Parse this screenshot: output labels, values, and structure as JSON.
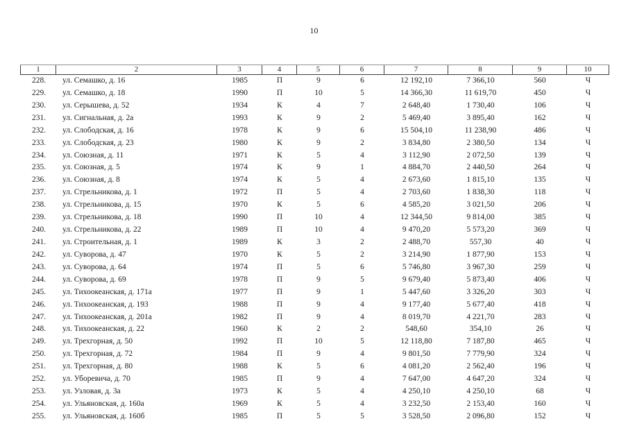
{
  "page": {
    "number": "10"
  },
  "table": {
    "header": [
      "1",
      "2",
      "3",
      "4",
      "5",
      "6",
      "7",
      "8",
      "9",
      "10"
    ],
    "rows": [
      [
        "228.",
        "ул. Семашко, д. 16",
        "1985",
        "П",
        "9",
        "6",
        "12 192,10",
        "7 366,10",
        "560",
        "Ч"
      ],
      [
        "229.",
        "ул. Семашко, д. 18",
        "1990",
        "П",
        "10",
        "5",
        "14 366,30",
        "11 619,70",
        "450",
        "Ч"
      ],
      [
        "230.",
        "ул. Серышева, д. 52",
        "1934",
        "К",
        "4",
        "7",
        "2 648,40",
        "1 730,40",
        "106",
        "Ч"
      ],
      [
        "231.",
        "ул. Сигнальная, д. 2а",
        "1993",
        "К",
        "9",
        "2",
        "5 469,40",
        "3 895,40",
        "162",
        "Ч"
      ],
      [
        "232.",
        "ул. Слободская, д. 16",
        "1978",
        "К",
        "9",
        "6",
        "15 504,10",
        "11 238,90",
        "486",
        "Ч"
      ],
      [
        "233.",
        "ул. Слободская, д. 23",
        "1980",
        "К",
        "9",
        "2",
        "3 834,80",
        "2 380,50",
        "134",
        "Ч"
      ],
      [
        "234.",
        "ул. Союзная, д. 11",
        "1971",
        "К",
        "5",
        "4",
        "3 112,90",
        "2 072,50",
        "139",
        "Ч"
      ],
      [
        "235.",
        "ул. Союзная, д. 5",
        "1974",
        "К",
        "9",
        "1",
        "4 884,70",
        "2 440,50",
        "264",
        "Ч"
      ],
      [
        "236.",
        "ул. Союзная, д. 8",
        "1974",
        "К",
        "5",
        "4",
        "2 673,60",
        "1 815,10",
        "135",
        "Ч"
      ],
      [
        "237.",
        "ул. Стрельникова, д. 1",
        "1972",
        "П",
        "5",
        "4",
        "2 703,60",
        "1 838,30",
        "118",
        "Ч"
      ],
      [
        "238.",
        "ул. Стрельникова, д. 15",
        "1970",
        "К",
        "5",
        "6",
        "4 585,20",
        "3 021,50",
        "206",
        "Ч"
      ],
      [
        "239.",
        "ул. Стрельникова, д. 18",
        "1990",
        "П",
        "10",
        "4",
        "12 344,50",
        "9 814,00",
        "385",
        "Ч"
      ],
      [
        "240.",
        "ул. Стрельникова, д. 22",
        "1989",
        "П",
        "10",
        "4",
        "9 470,20",
        "5 573,20",
        "369",
        "Ч"
      ],
      [
        "241.",
        "ул. Строительная, д. 1",
        "1989",
        "К",
        "3",
        "2",
        "2 488,70",
        "557,30",
        "40",
        "Ч"
      ],
      [
        "242.",
        "ул. Суворова, д. 47",
        "1970",
        "К",
        "5",
        "2",
        "3 214,90",
        "1 877,90",
        "153",
        "Ч"
      ],
      [
        "243.",
        "ул. Суворова, д. 64",
        "1974",
        "П",
        "5",
        "6",
        "5 746,80",
        "3 967,30",
        "259",
        "Ч"
      ],
      [
        "244.",
        "ул. Суворова, д. 69",
        "1978",
        "П",
        "9",
        "5",
        "9 679,40",
        "5 873,40",
        "406",
        "Ч"
      ],
      [
        "245.",
        "ул. Тихоокеанская, д. 171а",
        "1977",
        "П",
        "9",
        "1",
        "5 447,60",
        "3 326,20",
        "303",
        "Ч"
      ],
      [
        "246.",
        "ул. Тихоокеанская, д. 193",
        "1988",
        "П",
        "9",
        "4",
        "9 177,40",
        "5 677,40",
        "418",
        "Ч"
      ],
      [
        "247.",
        "ул. Тихоокеанская, д. 201а",
        "1982",
        "П",
        "9",
        "4",
        "8 019,70",
        "4 221,70",
        "283",
        "Ч"
      ],
      [
        "248.",
        "ул. Тихоокеанская, д. 22",
        "1960",
        "К",
        "2",
        "2",
        "548,60",
        "354,10",
        "26",
        "Ч"
      ],
      [
        "249.",
        "ул. Трехгорная, д. 50",
        "1992",
        "П",
        "10",
        "5",
        "12 118,80",
        "7 187,80",
        "465",
        "Ч"
      ],
      [
        "250.",
        "ул. Трехгорная, д. 72",
        "1984",
        "П",
        "9",
        "4",
        "9 801,50",
        "7 779,90",
        "324",
        "Ч"
      ],
      [
        "251.",
        "ул. Трехгорная, д. 80",
        "1988",
        "К",
        "5",
        "6",
        "4 081,20",
        "2 562,40",
        "196",
        "Ч"
      ],
      [
        "252.",
        "ул. Уборевича, д. 70",
        "1985",
        "П",
        "9",
        "4",
        "7 647,00",
        "4 647,20",
        "324",
        "Ч"
      ],
      [
        "253.",
        "ул. Узловая, д. 3а",
        "1973",
        "К",
        "5",
        "4",
        "4 250,10",
        "4 250,10",
        "68",
        "Ч"
      ],
      [
        "254.",
        "ул. Ульяновская, д. 160а",
        "1969",
        "К",
        "5",
        "4",
        "3 232,50",
        "2 153,40",
        "160",
        "Ч"
      ],
      [
        "255.",
        "ул. Ульяновская, д. 160б",
        "1985",
        "П",
        "5",
        "5",
        "3 528,50",
        "2 096,80",
        "152",
        "Ч"
      ]
    ]
  }
}
